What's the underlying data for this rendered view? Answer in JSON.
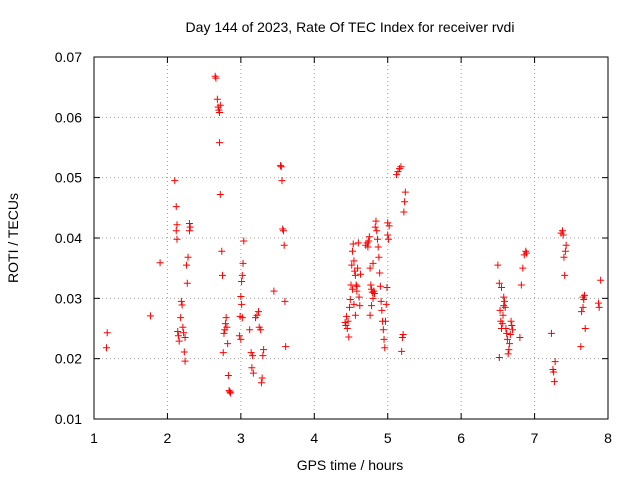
{
  "chart_data": {
    "type": "scatter",
    "title": "Day 144 of 2023, Rate Of TEC Index for receiver rvdi",
    "xlabel": "GPS time / hours",
    "ylabel": "ROTI / TECUs",
    "xlim": [
      1,
      8
    ],
    "ylim": [
      0.01,
      0.07
    ],
    "x_ticks": [
      1,
      2,
      3,
      4,
      5,
      6,
      7,
      8
    ],
    "x_tick_labels": [
      "1",
      "2",
      "3",
      "4",
      "5",
      "6",
      "7",
      "8"
    ],
    "y_ticks": [
      0.01,
      0.02,
      0.03,
      0.04,
      0.05,
      0.06,
      0.07
    ],
    "y_tick_labels": [
      "0.01",
      "0.02",
      "0.03",
      "0.04",
      "0.05",
      "0.06",
      "0.07"
    ],
    "grid": true,
    "grid_style": "dotted",
    "marker": "+",
    "marker_color": "#ff0000",
    "series": [
      {
        "points": [
          [
            1.18,
            0.0243
          ],
          [
            1.17,
            0.0218
          ],
          [
            1.77,
            0.0271
          ],
          [
            1.9,
            0.0359
          ],
          [
            2.1,
            0.0495
          ],
          [
            2.12,
            0.0452
          ],
          [
            2.13,
            0.0422
          ],
          [
            2.12,
            0.0412
          ],
          [
            2.13,
            0.0398
          ],
          [
            2.14,
            0.0245
          ],
          [
            2.15,
            0.0238
          ],
          [
            2.16,
            0.0229
          ],
          [
            2.18,
            0.0268
          ],
          [
            2.19,
            0.0295
          ],
          [
            2.2,
            0.0289
          ],
          [
            2.21,
            0.0252
          ],
          [
            2.22,
            0.0243
          ],
          [
            2.23,
            0.0211
          ],
          [
            2.24,
            0.0196
          ],
          [
            2.24,
            0.0235
          ],
          [
            2.26,
            0.0355
          ],
          [
            2.27,
            0.0325
          ],
          [
            2.28,
            0.0368
          ],
          [
            2.3,
            0.0424
          ],
          [
            2.31,
            0.0418
          ],
          [
            2.3,
            0.0412
          ],
          [
            2.65,
            0.0668
          ],
          [
            2.66,
            0.0665
          ],
          [
            2.68,
            0.063
          ],
          [
            2.69,
            0.0617
          ],
          [
            2.7,
            0.0612
          ],
          [
            2.71,
            0.0608
          ],
          [
            2.72,
            0.062
          ],
          [
            2.71,
            0.0558
          ],
          [
            2.72,
            0.0472
          ],
          [
            2.74,
            0.0378
          ],
          [
            2.75,
            0.0338
          ],
          [
            2.76,
            0.021
          ],
          [
            2.77,
            0.0242
          ],
          [
            2.78,
            0.0248
          ],
          [
            2.79,
            0.0258
          ],
          [
            2.8,
            0.0268
          ],
          [
            2.81,
            0.0252
          ],
          [
            2.82,
            0.0225
          ],
          [
            2.83,
            0.0172
          ],
          [
            2.84,
            0.0147
          ],
          [
            2.86,
            0.0143
          ],
          [
            2.85,
            0.0145
          ],
          [
            2.98,
            0.0238
          ],
          [
            2.99,
            0.027
          ],
          [
            3.0,
            0.0303
          ],
          [
            3.01,
            0.0328
          ],
          [
            3.02,
            0.0338
          ],
          [
            3.03,
            0.0358
          ],
          [
            3.04,
            0.0395
          ],
          [
            3.01,
            0.029
          ],
          [
            3.02,
            0.0268
          ],
          [
            3.0,
            0.0232
          ],
          [
            3.12,
            0.0248
          ],
          [
            3.14,
            0.021
          ],
          [
            3.15,
            0.0185
          ],
          [
            3.16,
            0.0205
          ],
          [
            3.17,
            0.0176
          ],
          [
            3.2,
            0.0268
          ],
          [
            3.22,
            0.0272
          ],
          [
            3.24,
            0.0278
          ],
          [
            3.25,
            0.0252
          ],
          [
            3.27,
            0.0248
          ],
          [
            3.28,
            0.016
          ],
          [
            3.29,
            0.0168
          ],
          [
            3.3,
            0.0205
          ],
          [
            3.31,
            0.0215
          ],
          [
            3.45,
            0.0312
          ],
          [
            3.54,
            0.052
          ],
          [
            3.55,
            0.0518
          ],
          [
            3.56,
            0.0495
          ],
          [
            3.57,
            0.0415
          ],
          [
            3.58,
            0.0412
          ],
          [
            3.59,
            0.0388
          ],
          [
            3.6,
            0.0295
          ],
          [
            3.61,
            0.022
          ],
          [
            4.42,
            0.026
          ],
          [
            4.43,
            0.0255
          ],
          [
            4.44,
            0.027
          ],
          [
            4.45,
            0.025
          ],
          [
            4.46,
            0.0262
          ],
          [
            4.47,
            0.0236
          ],
          [
            4.48,
            0.0285
          ],
          [
            4.49,
            0.0298
          ],
          [
            4.5,
            0.0322
          ],
          [
            4.51,
            0.0355
          ],
          [
            4.52,
            0.0378
          ],
          [
            4.53,
            0.039
          ],
          [
            4.54,
            0.0362
          ],
          [
            4.55,
            0.0345
          ],
          [
            4.56,
            0.0338
          ],
          [
            4.57,
            0.0322
          ],
          [
            4.58,
            0.0312
          ],
          [
            4.59,
            0.035
          ],
          [
            4.6,
            0.0392
          ],
          [
            4.61,
            0.0302
          ],
          [
            4.62,
            0.0288
          ],
          [
            4.63,
            0.034
          ],
          [
            4.52,
            0.0315
          ],
          [
            4.54,
            0.029
          ],
          [
            4.56,
            0.0272
          ],
          [
            4.58,
            0.032
          ],
          [
            4.7,
            0.0388
          ],
          [
            4.72,
            0.0392
          ],
          [
            4.73,
            0.0385
          ],
          [
            4.74,
            0.0395
          ],
          [
            4.75,
            0.0402
          ],
          [
            4.76,
            0.035
          ],
          [
            4.77,
            0.0322
          ],
          [
            4.78,
            0.0315
          ],
          [
            4.79,
            0.031
          ],
          [
            4.8,
            0.03
          ],
          [
            4.81,
            0.0312
          ],
          [
            4.82,
            0.0308
          ],
          [
            4.83,
            0.0418
          ],
          [
            4.84,
            0.0428
          ],
          [
            4.85,
            0.0412
          ],
          [
            4.86,
            0.0398
          ],
          [
            4.87,
            0.0385
          ],
          [
            4.88,
            0.0368
          ],
          [
            4.89,
            0.0342
          ],
          [
            4.9,
            0.032
          ],
          [
            4.91,
            0.0295
          ],
          [
            4.92,
            0.028
          ],
          [
            4.93,
            0.0262
          ],
          [
            4.94,
            0.0248
          ],
          [
            4.95,
            0.0232
          ],
          [
            4.96,
            0.0218
          ],
          [
            4.97,
            0.0262
          ],
          [
            4.98,
            0.029
          ],
          [
            4.99,
            0.0318
          ],
          [
            5.0,
            0.0405
          ],
          [
            5.01,
            0.0398
          ],
          [
            5.02,
            0.042
          ],
          [
            5.0,
            0.0425
          ],
          [
            4.76,
            0.0272
          ],
          [
            4.78,
            0.0288
          ],
          [
            4.8,
            0.0358
          ],
          [
            5.12,
            0.0505
          ],
          [
            5.14,
            0.051
          ],
          [
            5.16,
            0.0515
          ],
          [
            5.18,
            0.0518
          ],
          [
            5.19,
            0.0212
          ],
          [
            5.2,
            0.0235
          ],
          [
            5.21,
            0.024
          ],
          [
            5.22,
            0.0443
          ],
          [
            5.23,
            0.046
          ],
          [
            5.24,
            0.0476
          ],
          [
            6.5,
            0.0355
          ],
          [
            6.52,
            0.0325
          ],
          [
            6.53,
            0.028
          ],
          [
            6.54,
            0.0262
          ],
          [
            6.55,
            0.025
          ],
          [
            6.56,
            0.0258
          ],
          [
            6.57,
            0.0272
          ],
          [
            6.58,
            0.0288
          ],
          [
            6.59,
            0.0295
          ],
          [
            6.6,
            0.0285
          ],
          [
            6.61,
            0.025
          ],
          [
            6.62,
            0.0242
          ],
          [
            6.63,
            0.0232
          ],
          [
            6.64,
            0.0208
          ],
          [
            6.65,
            0.0215
          ],
          [
            6.66,
            0.0225
          ],
          [
            6.67,
            0.024
          ],
          [
            6.68,
            0.0262
          ],
          [
            6.69,
            0.0255
          ],
          [
            6.7,
            0.0248
          ],
          [
            6.52,
            0.0202
          ],
          [
            6.55,
            0.0318
          ],
          [
            6.58,
            0.0302
          ],
          [
            6.8,
            0.0235
          ],
          [
            6.82,
            0.0322
          ],
          [
            6.84,
            0.035
          ],
          [
            6.86,
            0.0372
          ],
          [
            6.88,
            0.0378
          ],
          [
            6.89,
            0.0375
          ],
          [
            7.23,
            0.0242
          ],
          [
            7.25,
            0.0182
          ],
          [
            7.26,
            0.0178
          ],
          [
            7.27,
            0.0162
          ],
          [
            7.28,
            0.0195
          ],
          [
            7.36,
            0.0408
          ],
          [
            7.38,
            0.0412
          ],
          [
            7.39,
            0.0405
          ],
          [
            7.4,
            0.0368
          ],
          [
            7.42,
            0.0378
          ],
          [
            7.43,
            0.0388
          ],
          [
            7.41,
            0.0338
          ],
          [
            7.63,
            0.022
          ],
          [
            7.64,
            0.0278
          ],
          [
            7.66,
            0.0285
          ],
          [
            7.67,
            0.0298
          ],
          [
            7.68,
            0.0305
          ],
          [
            7.69,
            0.025
          ],
          [
            7.66,
            0.0302
          ],
          [
            7.87,
            0.0292
          ],
          [
            7.88,
            0.0285
          ],
          [
            7.9,
            0.033
          ]
        ]
      }
    ]
  }
}
